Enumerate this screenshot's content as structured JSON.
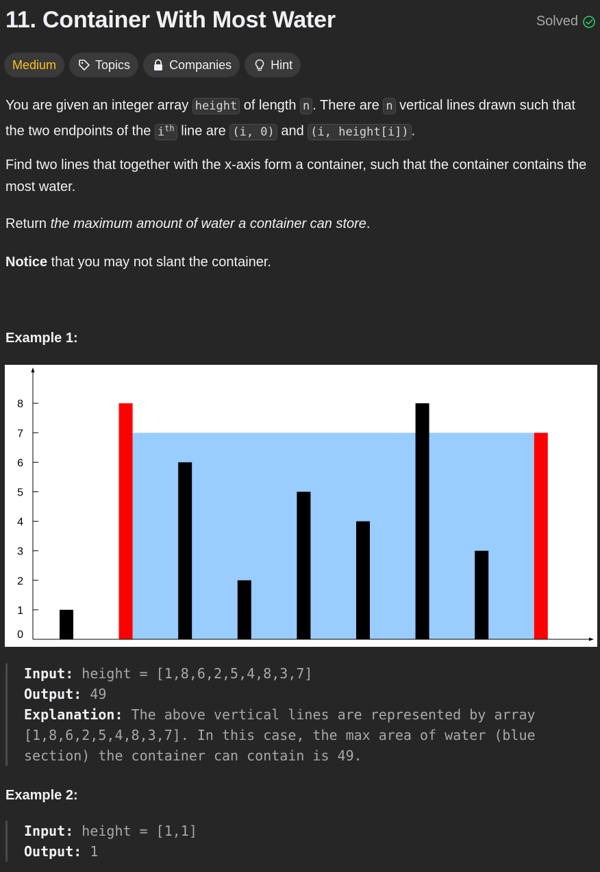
{
  "header": {
    "title": "11. Container With Most Water",
    "status": "Solved",
    "icons": {
      "status": "check-circle-icon"
    },
    "colors": {
      "status": "#2cbb5d"
    }
  },
  "tags": [
    {
      "label": "Medium",
      "icon": null,
      "color": "#ffc01e"
    },
    {
      "label": "Topics",
      "icon": "tag-icon"
    },
    {
      "label": "Companies",
      "icon": "lock-icon"
    },
    {
      "label": "Hint",
      "icon": "lightbulb-icon"
    }
  ],
  "description": {
    "p1": {
      "t1": "You are given an integer array ",
      "c1": "height",
      "t2": " of length ",
      "c2": "n",
      "t3": ". There are ",
      "c3": "n",
      "t4": " vertical lines drawn such that the two endpoints of the ",
      "c4_base": "i",
      "c4_sup": "th",
      "t5": " line are ",
      "c5": "(i, 0)",
      "t6": " and ",
      "c6": "(i, height[i])",
      "t7": "."
    },
    "p2": "Find two lines that together with the x-axis form a container, such that the container contains the most water.",
    "p3": {
      "t1": "Return ",
      "em": "the maximum amount of water a container can store",
      "t2": "."
    },
    "p4": {
      "strong": "Notice",
      "t1": " that you may not slant the container."
    }
  },
  "example1": {
    "title": "Example 1:",
    "input_label": "Input:",
    "input_value": "height = [1,8,6,2,5,4,8,3,7]",
    "output_label": "Output:",
    "output_value": "49",
    "explanation_label": "Explanation:",
    "explanation_line1": "The above vertical lines are represented by array",
    "explanation_line2": "[1,8,6,2,5,4,8,3,7]. In this case, the max area of water (blue",
    "explanation_line3": "section) the container can contain is 49."
  },
  "example2": {
    "title": "Example 2:",
    "input_label": "Input:",
    "input_value": "height = [1,1]",
    "output_label": "Output:",
    "output_value": "1"
  },
  "chart_data": {
    "type": "bar",
    "title": "",
    "xlabel": "",
    "ylabel": "",
    "ylim": [
      0,
      9
    ],
    "y_ticks": [
      "0",
      "1",
      "2",
      "3",
      "4",
      "5",
      "6",
      "7",
      "8"
    ],
    "values": [
      1,
      8,
      6,
      2,
      5,
      4,
      8,
      3,
      7
    ],
    "highlight_indices": [
      1,
      8
    ],
    "water_level": 7,
    "water_range": [
      1,
      8
    ],
    "grid": false,
    "colors": {
      "bar": "#000000",
      "highlight": "#ff0000",
      "water": "#99ccff"
    }
  }
}
